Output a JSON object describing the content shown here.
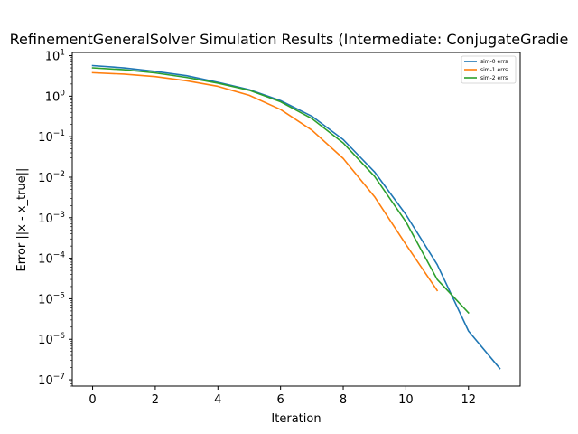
{
  "chart_data": {
    "type": "line",
    "title": "RefinementGeneralSolver Simulation Results (Intermediate: ConjugateGradie",
    "xlabel": "Iteration",
    "ylabel": "Error ||x - x_true||",
    "y_scale": "log",
    "xlim": [
      -0.65,
      13.65
    ],
    "ylim": [
      7e-08,
      12
    ],
    "x_ticks": [
      0,
      2,
      4,
      6,
      8,
      10,
      12
    ],
    "x_tick_labels": [
      "0",
      "2",
      "4",
      "6",
      "8",
      "10",
      "12"
    ],
    "y_tick_bases": [
      "10",
      "10",
      "10",
      "10",
      "10",
      "10",
      "10",
      "10",
      "10"
    ],
    "y_tick_exponents": [
      "1",
      "0",
      "−1",
      "−2",
      "−3",
      "−4",
      "−5",
      "−6",
      "−7"
    ],
    "y_tick_values": [
      10,
      1,
      0.1,
      0.01,
      0.001,
      0.0001,
      1e-05,
      1e-06,
      1e-07
    ],
    "grid": false,
    "legend_position": "top-right",
    "series": [
      {
        "name": "sim-0 errs",
        "color": "#1f77b4",
        "x": [
          0,
          1,
          2,
          3,
          4,
          5,
          6,
          7,
          8,
          9,
          10,
          11,
          12,
          13
        ],
        "values": [
          5.7,
          5.0,
          4.1,
          3.2,
          2.2,
          1.45,
          0.78,
          0.32,
          0.085,
          0.0135,
          0.0012,
          7e-05,
          1.6e-06,
          1.9e-07
        ]
      },
      {
        "name": "sim-1 errs",
        "color": "#ff7f0e",
        "x": [
          0,
          1,
          2,
          3,
          4,
          5,
          6,
          7,
          8,
          9,
          10,
          11
        ],
        "values": [
          3.8,
          3.5,
          3.05,
          2.4,
          1.75,
          1.05,
          0.47,
          0.145,
          0.029,
          0.0033,
          0.00022,
          1.6e-05
        ]
      },
      {
        "name": "sim-2 errs",
        "color": "#2ca02c",
        "x": [
          0,
          1,
          2,
          3,
          4,
          5,
          6,
          7,
          8,
          9,
          10,
          11,
          12
        ],
        "values": [
          5.0,
          4.5,
          3.75,
          2.9,
          2.1,
          1.4,
          0.73,
          0.28,
          0.07,
          0.0105,
          0.0008,
          3e-05,
          4.5e-06
        ]
      }
    ]
  }
}
